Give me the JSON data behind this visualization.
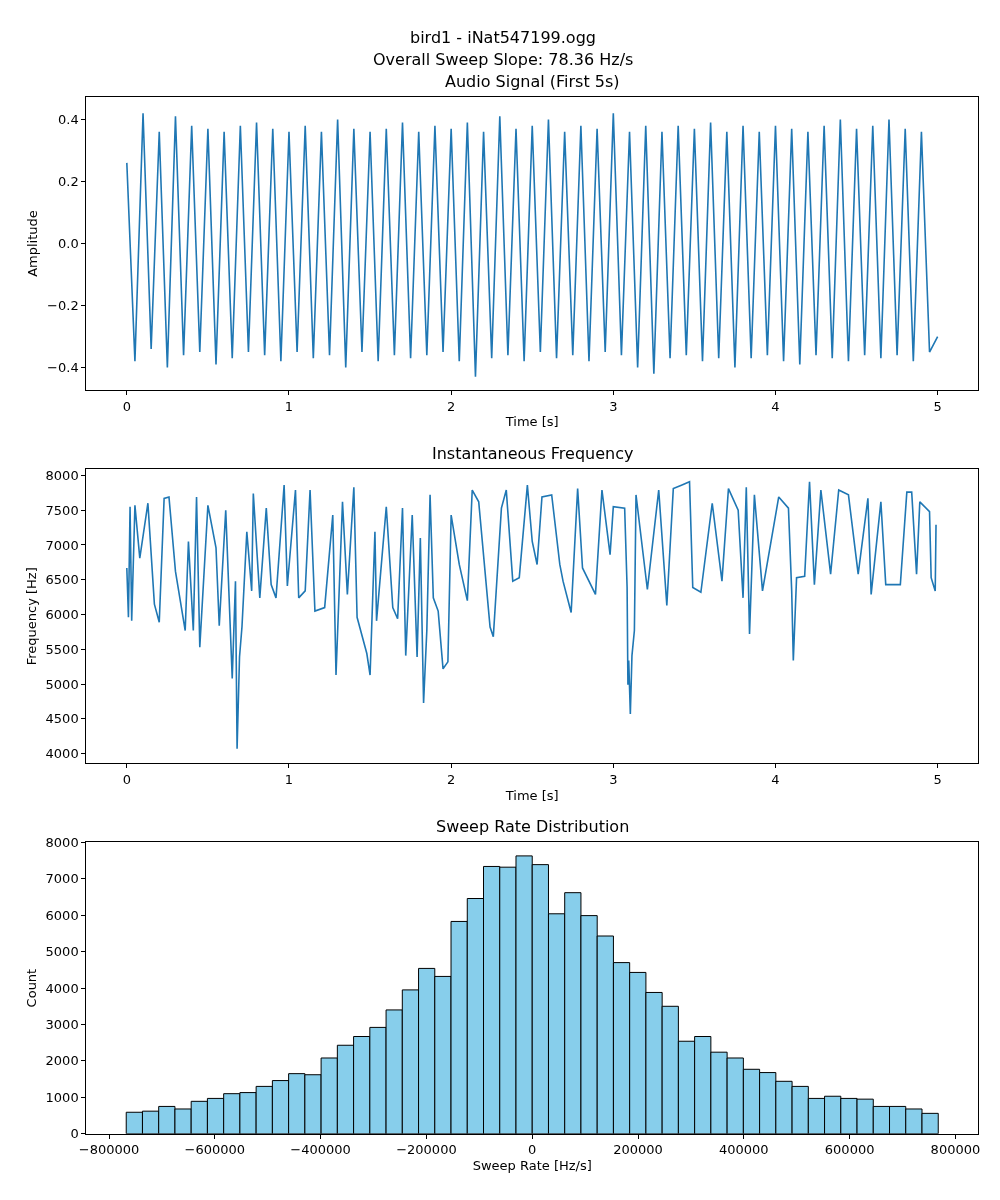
{
  "chart_data": [
    {
      "type": "line",
      "title": "Audio Signal (First 5s)",
      "annotations": [
        "bird1 - iNat547199.ogg",
        "Overall Sweep Slope: 78.36 Hz/s"
      ],
      "xlabel": "Time [s]",
      "ylabel": "Amplitude",
      "xlim": [
        -0.25,
        5.25
      ],
      "xticks": [
        0,
        1,
        2,
        3,
        4,
        5
      ],
      "ylim": [
        -0.473,
        0.473
      ],
      "yticks": [
        {
          "value": -0.4,
          "label": "−0.4"
        },
        {
          "value": -0.2,
          "label": "−0.2"
        },
        {
          "value": 0,
          "label": "0.0"
        },
        {
          "value": 0.2,
          "label": "0.2"
        },
        {
          "value": 0.4,
          "label": "0.4"
        }
      ],
      "marker": "none",
      "line_style": "solid",
      "x": [
        0,
        0.05,
        0.1,
        0.15,
        0.2,
        0.25,
        0.3,
        0.35,
        0.4,
        0.45,
        0.5,
        0.55,
        0.6,
        0.65,
        0.7,
        0.75,
        0.8,
        0.85,
        0.9,
        0.95,
        1.0,
        1.05,
        1.1,
        1.15,
        1.2,
        1.25,
        1.3,
        1.35,
        1.4,
        1.45,
        1.5,
        1.55,
        1.6,
        1.65,
        1.7,
        1.75,
        1.8,
        1.85,
        1.9,
        1.95,
        2.0,
        2.05,
        2.1,
        2.15,
        2.2,
        2.25,
        2.3,
        2.35,
        2.4,
        2.45,
        2.5,
        2.55,
        2.6,
        2.65,
        2.7,
        2.75,
        2.8,
        2.85,
        2.9,
        2.95,
        3.0,
        3.05,
        3.1,
        3.15,
        3.2,
        3.25,
        3.3,
        3.35,
        3.4,
        3.45,
        3.5,
        3.55,
        3.6,
        3.65,
        3.7,
        3.75,
        3.8,
        3.85,
        3.9,
        3.95,
        4.0,
        4.05,
        4.1,
        4.15,
        4.2,
        4.25,
        4.3,
        4.35,
        4.4,
        4.45,
        4.5,
        4.55,
        4.6,
        4.65,
        4.7,
        4.75,
        4.8,
        4.85,
        4.9,
        4.95,
        5.0
      ],
      "series": [
        {
          "color": "#1f77b4",
          "values": [
            0.26,
            -0.38,
            0.42,
            -0.34,
            0.36,
            -0.4,
            0.41,
            -0.36,
            0.38,
            -0.35,
            0.37,
            -0.39,
            0.36,
            -0.37,
            0.38,
            -0.35,
            0.39,
            -0.36,
            0.37,
            -0.38,
            0.36,
            -0.35,
            0.38,
            -0.37,
            0.36,
            -0.36,
            0.4,
            -0.4,
            0.37,
            -0.35,
            0.36,
            -0.38,
            0.37,
            -0.36,
            0.39,
            -0.37,
            0.36,
            -0.36,
            0.38,
            -0.35,
            0.37,
            -0.38,
            0.39,
            -0.43,
            0.36,
            -0.37,
            0.41,
            -0.36,
            0.37,
            -0.38,
            0.38,
            -0.35,
            0.4,
            -0.37,
            0.36,
            -0.36,
            0.38,
            -0.38,
            0.37,
            -0.35,
            0.42,
            -0.36,
            0.36,
            -0.4,
            0.38,
            -0.42,
            0.36,
            -0.37,
            0.38,
            -0.36,
            0.37,
            -0.38,
            0.39,
            -0.37,
            0.36,
            -0.4,
            0.38,
            -0.37,
            0.36,
            -0.36,
            0.38,
            -0.38,
            0.37,
            -0.39,
            0.36,
            -0.36,
            0.38,
            -0.37,
            0.4,
            -0.38,
            0.37,
            -0.36,
            0.38,
            -0.37,
            0.4,
            -0.36,
            0.37,
            -0.38,
            0.36,
            -0.35,
            -0.3
          ]
        }
      ]
    },
    {
      "type": "line",
      "title": "Instantaneous Frequency",
      "xlabel": "Time [s]",
      "ylabel": "Frequency [Hz]",
      "xlim": [
        -0.25,
        5.25
      ],
      "xticks": [
        0,
        1,
        2,
        3,
        4,
        5
      ],
      "ylim": [
        3860,
        8090
      ],
      "yticks": [
        4000,
        4500,
        5000,
        5500,
        6000,
        6500,
        7000,
        7500,
        8000
      ],
      "marker": "none",
      "line_style": "solid",
      "x": [
        0,
        0.01,
        0.02,
        0.03,
        0.05,
        0.08,
        0.13,
        0.17,
        0.2,
        0.23,
        0.26,
        0.3,
        0.36,
        0.38,
        0.41,
        0.43,
        0.45,
        0.5,
        0.55,
        0.57,
        0.61,
        0.65,
        0.67,
        0.68,
        0.695,
        0.71,
        0.74,
        0.77,
        0.78,
        0.82,
        0.86,
        0.89,
        0.92,
        0.97,
        0.99,
        1.04,
        1.06,
        1.1,
        1.13,
        1.16,
        1.22,
        1.27,
        1.29,
        1.33,
        1.36,
        1.4,
        1.42,
        1.48,
        1.5,
        1.53,
        1.54,
        1.6,
        1.64,
        1.67,
        1.7,
        1.72,
        1.76,
        1.79,
        1.81,
        1.83,
        1.85,
        1.87,
        1.89,
        1.92,
        1.95,
        1.98,
        2.0,
        2.05,
        2.1,
        2.13,
        2.17,
        2.24,
        2.26,
        2.31,
        2.34,
        2.38,
        2.42,
        2.47,
        2.5,
        2.53,
        2.56,
        2.62,
        2.67,
        2.69,
        2.74,
        2.78,
        2.81,
        2.89,
        2.93,
        2.98,
        3.0,
        3.07,
        3.085,
        3.09,
        3.095,
        3.105,
        3.115,
        3.13,
        3.14,
        3.21,
        3.28,
        3.33,
        3.37,
        3.42,
        3.47,
        3.49,
        3.54,
        3.61,
        3.67,
        3.71,
        3.77,
        3.8,
        3.82,
        3.84,
        3.87,
        3.92,
        4.02,
        4.08,
        4.1,
        4.11,
        4.13,
        4.18,
        4.21,
        4.24,
        4.28,
        4.34,
        4.39,
        4.45,
        4.51,
        4.57,
        4.59,
        4.65,
        4.68,
        4.77,
        4.81,
        4.84,
        4.87,
        4.89,
        4.95,
        4.96,
        4.985,
        4.99
      ],
      "series": [
        {
          "color": "#1f77b4",
          "values": [
            6670,
            5960,
            7550,
            5910,
            7570,
            6810,
            7600,
            6150,
            5890,
            7670,
            7690,
            6620,
            5770,
            7050,
            5770,
            7690,
            5530,
            7570,
            6960,
            5840,
            7500,
            5080,
            6480,
            4070,
            5390,
            5820,
            7190,
            6340,
            7740,
            6240,
            7530,
            6430,
            6240,
            7860,
            6410,
            7790,
            6240,
            6340,
            7790,
            6050,
            6100,
            7430,
            5130,
            7620,
            6290,
            7830,
            5960,
            5440,
            5130,
            7190,
            5910,
            7550,
            6100,
            5940,
            7530,
            5410,
            7430,
            5390,
            7100,
            4730,
            5770,
            7720,
            6240,
            6050,
            5220,
            5320,
            7430,
            6720,
            6200,
            7790,
            7620,
            5820,
            5680,
            7530,
            7790,
            6480,
            6530,
            7860,
            7050,
            6720,
            7690,
            7720,
            6720,
            6480,
            6030,
            7810,
            6670,
            6290,
            7790,
            6860,
            7550,
            7530,
            6390,
            4990,
            5340,
            4570,
            5410,
            5770,
            7720,
            6360,
            7790,
            6130,
            7810,
            7860,
            7910,
            6390,
            6320,
            7600,
            6480,
            7810,
            7500,
            6240,
            7830,
            5720,
            7720,
            6340,
            7690,
            7530,
            6340,
            5340,
            6530,
            6550,
            7910,
            6430,
            7790,
            6580,
            7790,
            7720,
            6580,
            7670,
            6290,
            7620,
            6430,
            6430,
            7760,
            7760,
            6580,
            7620,
            7480,
            6530,
            6340,
            7290
          ]
        }
      ]
    },
    {
      "type": "histogram",
      "title": "Sweep Rate Distribution",
      "xlabel": "Sweep Rate [Hz/s]",
      "ylabel": "Count",
      "xlim": [
        -843000,
        843000
      ],
      "xticks": [
        {
          "value": -800000,
          "label": "−800000"
        },
        {
          "value": -600000,
          "label": "−600000"
        },
        {
          "value": -400000,
          "label": "−400000"
        },
        {
          "value": -200000,
          "label": "−200000"
        },
        0,
        200000,
        400000,
        600000,
        800000
      ],
      "ylim": [
        0,
        8000
      ],
      "yticks": [
        0,
        1000,
        2000,
        3000,
        4000,
        5000,
        6000,
        7000,
        8000
      ],
      "color": "#87ceeb",
      "bins": [
        -767500,
        -736800,
        -706100,
        -675400,
        -644700,
        -614000,
        -583300,
        -552600,
        -521900,
        -491200,
        -460500,
        -429800,
        -399100,
        -368400,
        -337700,
        -307000,
        -276300,
        -245600,
        -214900,
        -184200,
        -153500,
        -122800,
        -92100,
        -61400,
        -30700,
        0,
        30700,
        61400,
        92100,
        122800,
        153500,
        184200,
        214900,
        245600,
        276300,
        307000,
        337700,
        368400,
        399100,
        429800,
        460500,
        491200,
        521900,
        552600,
        583300,
        614000,
        644700,
        675400,
        706100,
        736800,
        767500
      ],
      "values": [
        590,
        620,
        750,
        680,
        890,
        970,
        1100,
        1130,
        1300,
        1460,
        1650,
        1620,
        2080,
        2430,
        2670,
        2920,
        3400,
        3950,
        4540,
        4320,
        5830,
        6460,
        7340,
        7320,
        7630,
        7390,
        6040,
        6620,
        5990,
        5430,
        4700,
        4430,
        3880,
        3500,
        2540,
        2670,
        2240,
        2080,
        1770,
        1680,
        1440,
        1300,
        970,
        1030,
        970,
        950,
        750,
        750,
        680,
        560
      ]
    }
  ]
}
